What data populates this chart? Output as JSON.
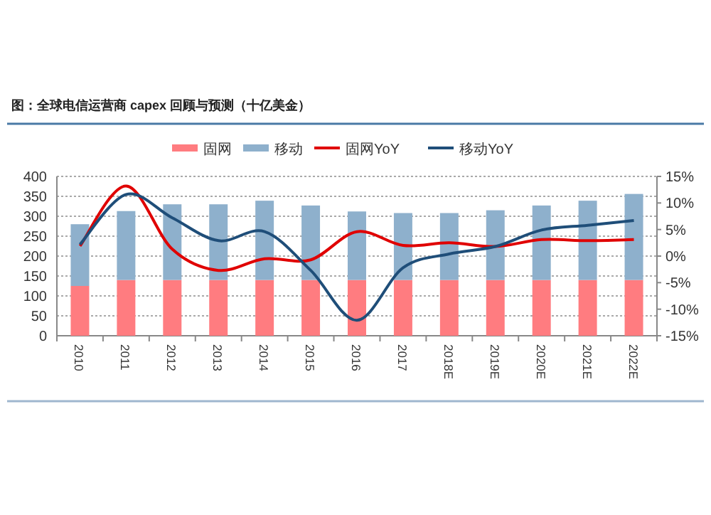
{
  "chart_data": {
    "type": "bar",
    "stacked": true,
    "title": "图：全球电信运营商 capex 回顾与预测（十亿美金）",
    "categories": [
      "2010",
      "2011",
      "2012",
      "2013",
      "2014",
      "2015",
      "2016",
      "2017",
      "2018E",
      "2019E",
      "2020E",
      "2021E",
      "2022E"
    ],
    "series": [
      {
        "name": "固网",
        "color": "#ff7c80",
        "values": [
          125,
          140,
          140,
          140,
          140,
          140,
          140,
          140,
          140,
          140,
          140,
          140,
          140
        ]
      },
      {
        "name": "移动",
        "color": "#8eb0cc",
        "values": [
          155,
          173,
          190,
          190,
          199,
          187,
          172,
          168,
          168,
          175,
          187,
          199,
          216
        ]
      },
      {
        "name": "固网YoY",
        "type": "line",
        "axis": "y2",
        "color": "#e00000",
        "values": [
          1.9,
          13.2,
          1.3,
          -2.7,
          -0.5,
          -0.7,
          4.6,
          2.0,
          2.5,
          1.8,
          3.1,
          2.9,
          3.1
        ]
      },
      {
        "name": "移动YoY",
        "type": "line",
        "axis": "y2",
        "color": "#1f4e79",
        "values": [
          2.2,
          11.6,
          7.2,
          2.9,
          4.6,
          -2.7,
          -12.1,
          -2.2,
          0.4,
          1.8,
          4.9,
          5.8,
          6.7
        ]
      }
    ],
    "ylim": [
      0,
      400
    ],
    "yticks": [
      0,
      50,
      100,
      150,
      200,
      250,
      300,
      350,
      400
    ],
    "y2lim": [
      -15,
      15
    ],
    "y2ticks": [
      {
        "value": -15,
        "label": "-15%"
      },
      {
        "value": -10,
        "label": "-10%"
      },
      {
        "value": -5,
        "label": "-5%"
      },
      {
        "value": 0,
        "label": "0%"
      },
      {
        "value": 5,
        "label": "5%"
      },
      {
        "value": 10,
        "label": "10%"
      },
      {
        "value": 15,
        "label": "15%"
      }
    ],
    "grid": "y",
    "legend": "top"
  }
}
